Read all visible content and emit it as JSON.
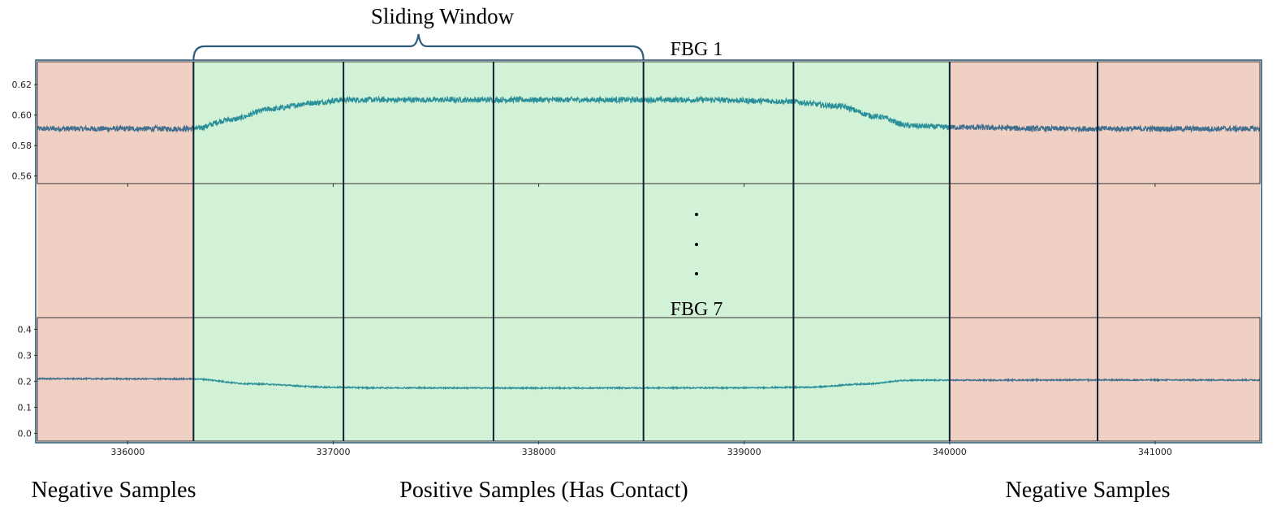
{
  "annotations": {
    "sliding_window": "Sliding Window",
    "fbg_top": "FBG 1",
    "fbg_bottom": "FBG 7",
    "negative_left": "Negative Samples",
    "positive": "Positive Samples (Has Contact)",
    "negative_right": "Negative Samples"
  },
  "colors": {
    "negative_region": "#f0d0c3",
    "positive_region": "#d1f2d6",
    "signal_negative": "#3f6e8f",
    "signal_positive": "#2a8f9a",
    "window_line": "#0f2233",
    "brace": "#2f5c7a"
  },
  "chart_data": [
    {
      "type": "line",
      "name": "FBG 1",
      "x_range": [
        335560,
        341510
      ],
      "ylim": [
        0.555,
        0.635
      ],
      "y_ticks": [
        0.56,
        0.58,
        0.6,
        0.62
      ],
      "y_tick_labels": [
        "0.56",
        "0.58",
        "0.60",
        "0.62"
      ],
      "x": [
        335560,
        336320,
        336500,
        336700,
        336900,
        337050,
        337200,
        338000,
        338800,
        339200,
        339450,
        339650,
        339800,
        340000,
        340500,
        341510
      ],
      "y": [
        0.591,
        0.591,
        0.597,
        0.604,
        0.608,
        0.61,
        0.61,
        0.61,
        0.61,
        0.609,
        0.606,
        0.599,
        0.593,
        0.592,
        0.591,
        0.591
      ],
      "noise": 0.0018
    },
    {
      "type": "line",
      "name": "FBG 7",
      "x_range": [
        335560,
        341510
      ],
      "ylim": [
        -0.03,
        0.445
      ],
      "y_ticks": [
        0.0,
        0.1,
        0.2,
        0.3,
        0.4
      ],
      "y_tick_labels": [
        "0.0",
        "0.1",
        "0.2",
        "0.3",
        "0.4"
      ],
      "x_ticks": [
        336000,
        337000,
        338000,
        339000,
        340000,
        341000
      ],
      "x_tick_labels": [
        "336000",
        "337000",
        "338000",
        "339000",
        "340000",
        "341000"
      ],
      "x": [
        335560,
        336320,
        336600,
        337000,
        337200,
        338000,
        339000,
        339300,
        339600,
        339800,
        340000,
        340500,
        341510
      ],
      "y": [
        0.21,
        0.209,
        0.19,
        0.177,
        0.175,
        0.174,
        0.175,
        0.177,
        0.19,
        0.204,
        0.204,
        0.205,
        0.205
      ],
      "noise": 0.0025
    }
  ],
  "regions": [
    {
      "label": "Negative Samples",
      "x": [
        335560,
        336320
      ]
    },
    {
      "label": "Positive Samples (Has Contact)",
      "x": [
        336320,
        340000
      ]
    },
    {
      "label": "Negative Samples",
      "x": [
        340000,
        341510
      ]
    }
  ],
  "window_boundaries_x": [
    336320,
    337050,
    337780,
    338510,
    339240,
    340000,
    340720
  ],
  "sliding_window_span_x": [
    336320,
    338510
  ]
}
